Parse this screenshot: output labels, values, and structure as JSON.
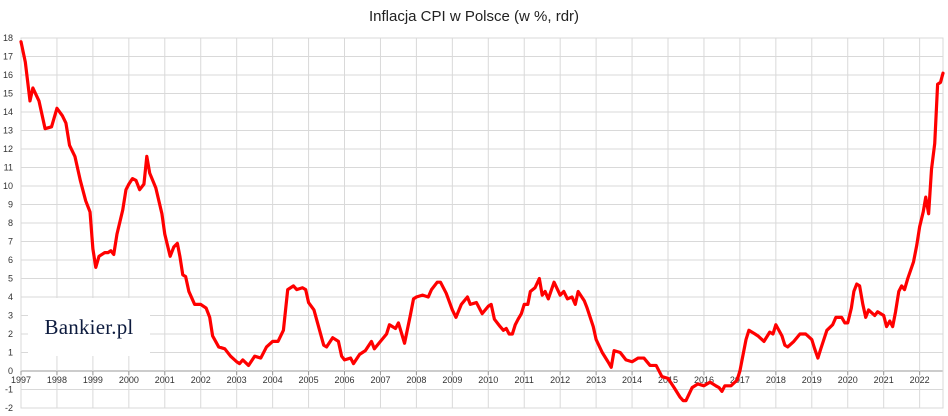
{
  "chart_data": {
    "type": "line",
    "title": "Inflacja CPI w Polsce (w %, rdr)",
    "xlabel": "",
    "ylabel": "",
    "ylim": [
      -2,
      18
    ],
    "yticks": [
      -2,
      -1,
      0,
      1,
      2,
      3,
      4,
      5,
      6,
      7,
      8,
      9,
      10,
      11,
      12,
      13,
      14,
      15,
      16,
      17,
      18
    ],
    "xlim": [
      1997.0,
      2022.65
    ],
    "xticks": [
      "1997",
      "1998",
      "1999",
      "2000",
      "2001",
      "2002",
      "2003",
      "2004",
      "2005",
      "2006",
      "2007",
      "2008",
      "2009",
      "2010",
      "2011",
      "2012",
      "2013",
      "2014",
      "2015",
      "2016",
      "2017",
      "2018",
      "2019",
      "2020",
      "2021",
      "2022"
    ],
    "grid": true,
    "line_color": "#ff0000",
    "series": [
      {
        "name": "",
        "points": [
          [
            1997.0,
            17.8
          ],
          [
            1997.12,
            16.7
          ],
          [
            1997.25,
            14.6
          ],
          [
            1997.33,
            15.3
          ],
          [
            1997.5,
            14.6
          ],
          [
            1997.67,
            13.1
          ],
          [
            1997.85,
            13.2
          ],
          [
            1998.0,
            14.2
          ],
          [
            1998.15,
            13.8
          ],
          [
            1998.25,
            13.4
          ],
          [
            1998.35,
            12.2
          ],
          [
            1998.5,
            11.6
          ],
          [
            1998.65,
            10.3
          ],
          [
            1998.8,
            9.2
          ],
          [
            1998.92,
            8.6
          ],
          [
            1999.0,
            6.6
          ],
          [
            1999.08,
            5.6
          ],
          [
            1999.17,
            6.2
          ],
          [
            1999.33,
            6.4
          ],
          [
            1999.42,
            6.4
          ],
          [
            1999.5,
            6.5
          ],
          [
            1999.58,
            6.3
          ],
          [
            1999.67,
            7.4
          ],
          [
            1999.83,
            8.7
          ],
          [
            1999.92,
            9.8
          ],
          [
            2000.0,
            10.1
          ],
          [
            2000.1,
            10.4
          ],
          [
            2000.2,
            10.3
          ],
          [
            2000.3,
            9.8
          ],
          [
            2000.42,
            10.1
          ],
          [
            2000.5,
            11.6
          ],
          [
            2000.58,
            10.7
          ],
          [
            2000.75,
            9.9
          ],
          [
            2000.92,
            8.5
          ],
          [
            2001.0,
            7.4
          ],
          [
            2001.15,
            6.2
          ],
          [
            2001.25,
            6.7
          ],
          [
            2001.35,
            6.9
          ],
          [
            2001.42,
            6.2
          ],
          [
            2001.5,
            5.2
          ],
          [
            2001.58,
            5.1
          ],
          [
            2001.67,
            4.3
          ],
          [
            2001.83,
            3.6
          ],
          [
            2002.0,
            3.6
          ],
          [
            2002.15,
            3.4
          ],
          [
            2002.25,
            2.9
          ],
          [
            2002.33,
            1.9
          ],
          [
            2002.5,
            1.3
          ],
          [
            2002.67,
            1.2
          ],
          [
            2002.83,
            0.8
          ],
          [
            2003.0,
            0.5
          ],
          [
            2003.08,
            0.4
          ],
          [
            2003.17,
            0.6
          ],
          [
            2003.33,
            0.3
          ],
          [
            2003.5,
            0.8
          ],
          [
            2003.67,
            0.7
          ],
          [
            2003.83,
            1.3
          ],
          [
            2004.0,
            1.6
          ],
          [
            2004.15,
            1.6
          ],
          [
            2004.3,
            2.2
          ],
          [
            2004.42,
            4.4
          ],
          [
            2004.58,
            4.6
          ],
          [
            2004.67,
            4.4
          ],
          [
            2004.83,
            4.5
          ],
          [
            2004.92,
            4.4
          ],
          [
            2005.0,
            3.7
          ],
          [
            2005.15,
            3.3
          ],
          [
            2005.25,
            2.6
          ],
          [
            2005.42,
            1.4
          ],
          [
            2005.5,
            1.3
          ],
          [
            2005.67,
            1.8
          ],
          [
            2005.83,
            1.6
          ],
          [
            2005.92,
            0.8
          ],
          [
            2006.0,
            0.6
          ],
          [
            2006.17,
            0.7
          ],
          [
            2006.25,
            0.4
          ],
          [
            2006.42,
            0.9
          ],
          [
            2006.58,
            1.1
          ],
          [
            2006.75,
            1.6
          ],
          [
            2006.83,
            1.2
          ],
          [
            2007.0,
            1.6
          ],
          [
            2007.17,
            2.0
          ],
          [
            2007.25,
            2.5
          ],
          [
            2007.42,
            2.3
          ],
          [
            2007.5,
            2.6
          ],
          [
            2007.67,
            1.5
          ],
          [
            2007.83,
            3.0
          ],
          [
            2007.92,
            3.9
          ],
          [
            2008.0,
            4.0
          ],
          [
            2008.17,
            4.1
          ],
          [
            2008.33,
            4.0
          ],
          [
            2008.42,
            4.4
          ],
          [
            2008.58,
            4.8
          ],
          [
            2008.67,
            4.8
          ],
          [
            2008.83,
            4.2
          ],
          [
            2009.0,
            3.3
          ],
          [
            2009.1,
            2.9
          ],
          [
            2009.25,
            3.6
          ],
          [
            2009.42,
            4.0
          ],
          [
            2009.5,
            3.6
          ],
          [
            2009.67,
            3.7
          ],
          [
            2009.83,
            3.1
          ],
          [
            2010.0,
            3.5
          ],
          [
            2010.08,
            3.6
          ],
          [
            2010.17,
            2.8
          ],
          [
            2010.33,
            2.4
          ],
          [
            2010.42,
            2.2
          ],
          [
            2010.5,
            2.3
          ],
          [
            2010.58,
            2.0
          ],
          [
            2010.67,
            2.0
          ],
          [
            2010.75,
            2.5
          ],
          [
            2010.83,
            2.8
          ],
          [
            2010.92,
            3.1
          ],
          [
            2011.0,
            3.6
          ],
          [
            2011.1,
            3.6
          ],
          [
            2011.17,
            4.3
          ],
          [
            2011.3,
            4.5
          ],
          [
            2011.42,
            5.0
          ],
          [
            2011.5,
            4.1
          ],
          [
            2011.58,
            4.3
          ],
          [
            2011.67,
            3.9
          ],
          [
            2011.83,
            4.8
          ],
          [
            2012.0,
            4.1
          ],
          [
            2012.1,
            4.3
          ],
          [
            2012.2,
            3.9
          ],
          [
            2012.33,
            4.0
          ],
          [
            2012.42,
            3.6
          ],
          [
            2012.5,
            4.3
          ],
          [
            2012.67,
            3.8
          ],
          [
            2012.75,
            3.4
          ],
          [
            2012.92,
            2.4
          ],
          [
            2013.0,
            1.7
          ],
          [
            2013.17,
            1.0
          ],
          [
            2013.33,
            0.5
          ],
          [
            2013.42,
            0.2
          ],
          [
            2013.5,
            1.1
          ],
          [
            2013.67,
            1.0
          ],
          [
            2013.83,
            0.6
          ],
          [
            2014.0,
            0.5
          ],
          [
            2014.17,
            0.7
          ],
          [
            2014.33,
            0.7
          ],
          [
            2014.5,
            0.3
          ],
          [
            2014.67,
            0.3
          ],
          [
            2014.83,
            -0.3
          ],
          [
            2015.0,
            -0.4
          ],
          [
            2015.17,
            -0.9
          ],
          [
            2015.33,
            -1.4
          ],
          [
            2015.42,
            -1.6
          ],
          [
            2015.5,
            -1.6
          ],
          [
            2015.67,
            -0.9
          ],
          [
            2015.83,
            -0.7
          ],
          [
            2016.0,
            -0.8
          ],
          [
            2016.17,
            -0.6
          ],
          [
            2016.33,
            -0.8
          ],
          [
            2016.42,
            -0.9
          ],
          [
            2016.5,
            -1.1
          ],
          [
            2016.58,
            -0.8
          ],
          [
            2016.75,
            -0.8
          ],
          [
            2016.92,
            -0.5
          ],
          [
            2017.0,
            0.0
          ],
          [
            2017.08,
            0.8
          ],
          [
            2017.17,
            1.7
          ],
          [
            2017.25,
            2.2
          ],
          [
            2017.42,
            2.0
          ],
          [
            2017.5,
            1.9
          ],
          [
            2017.67,
            1.6
          ],
          [
            2017.83,
            2.1
          ],
          [
            2017.92,
            2.0
          ],
          [
            2018.0,
            2.5
          ],
          [
            2018.17,
            1.9
          ],
          [
            2018.25,
            1.4
          ],
          [
            2018.33,
            1.3
          ],
          [
            2018.5,
            1.6
          ],
          [
            2018.67,
            2.0
          ],
          [
            2018.83,
            2.0
          ],
          [
            2019.0,
            1.7
          ],
          [
            2019.08,
            1.2
          ],
          [
            2019.17,
            0.7
          ],
          [
            2019.25,
            1.2
          ],
          [
            2019.42,
            2.2
          ],
          [
            2019.58,
            2.5
          ],
          [
            2019.67,
            2.9
          ],
          [
            2019.83,
            2.9
          ],
          [
            2019.92,
            2.6
          ],
          [
            2020.0,
            2.6
          ],
          [
            2020.1,
            3.4
          ],
          [
            2020.17,
            4.3
          ],
          [
            2020.25,
            4.7
          ],
          [
            2020.33,
            4.6
          ],
          [
            2020.42,
            3.6
          ],
          [
            2020.5,
            2.9
          ],
          [
            2020.58,
            3.3
          ],
          [
            2020.75,
            3.0
          ],
          [
            2020.83,
            3.2
          ],
          [
            2021.0,
            3.0
          ],
          [
            2021.08,
            2.4
          ],
          [
            2021.17,
            2.7
          ],
          [
            2021.25,
            2.4
          ],
          [
            2021.33,
            3.2
          ],
          [
            2021.42,
            4.3
          ],
          [
            2021.5,
            4.6
          ],
          [
            2021.58,
            4.4
          ],
          [
            2021.67,
            5.0
          ],
          [
            2021.83,
            5.9
          ],
          [
            2021.92,
            6.8
          ],
          [
            2022.0,
            7.8
          ],
          [
            2022.1,
            8.6
          ],
          [
            2022.17,
            9.4
          ],
          [
            2022.25,
            8.5
          ],
          [
            2022.33,
            10.9
          ],
          [
            2022.42,
            12.3
          ],
          [
            2022.5,
            15.5
          ],
          [
            2022.58,
            15.6
          ],
          [
            2022.65,
            16.1
          ]
        ]
      }
    ]
  },
  "watermark": {
    "text": "Bankier.pl"
  }
}
